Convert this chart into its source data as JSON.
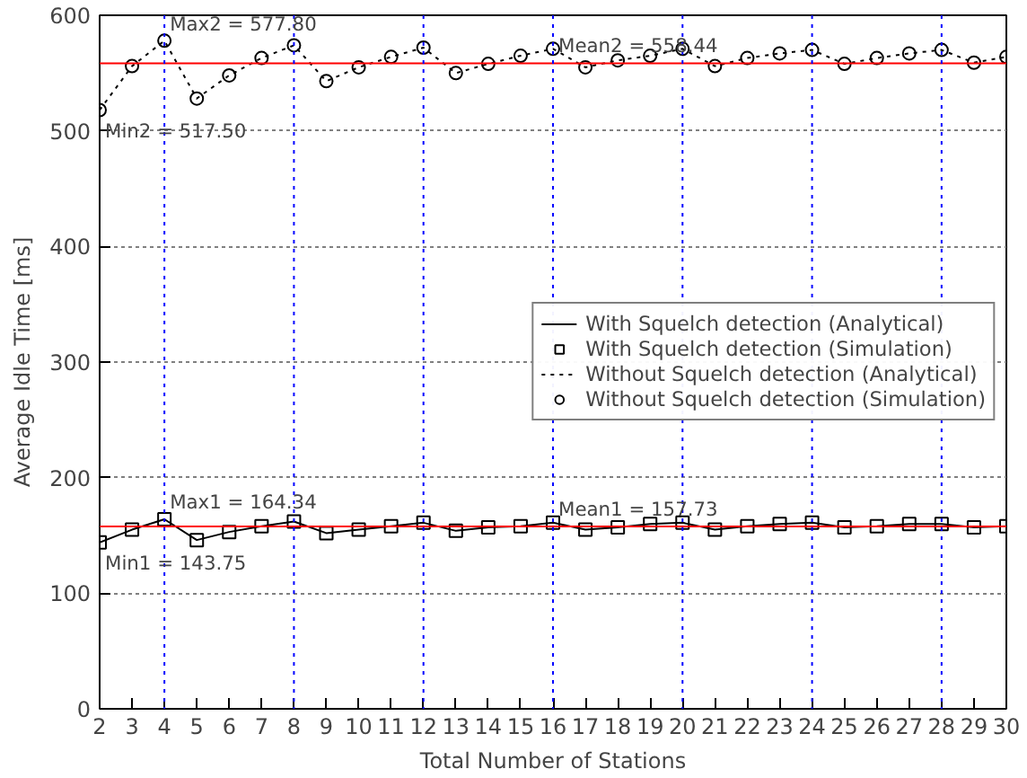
{
  "chart_data": {
    "type": "line",
    "xlabel": "Total Number of Stations",
    "ylabel": "Average Idle Time [ms]",
    "x": [
      2,
      3,
      4,
      5,
      6,
      7,
      8,
      9,
      10,
      11,
      12,
      13,
      14,
      15,
      16,
      17,
      18,
      19,
      20,
      21,
      22,
      23,
      24,
      25,
      26,
      27,
      28,
      29,
      30
    ],
    "xlim": [
      2,
      30
    ],
    "xticks": [
      2,
      3,
      4,
      5,
      6,
      7,
      8,
      9,
      10,
      11,
      12,
      13,
      14,
      15,
      16,
      17,
      18,
      19,
      20,
      21,
      22,
      23,
      24,
      25,
      26,
      27,
      28,
      29,
      30
    ],
    "ylim": [
      0,
      600
    ],
    "yticks": [
      0,
      100,
      200,
      300,
      400,
      500,
      600
    ],
    "grid": "y",
    "legend": "right",
    "series": [
      {
        "name": "With Squelch detection (Analytical)",
        "line_style": "solid",
        "marker": "none",
        "color": "#000000",
        "values": [
          144,
          155,
          164,
          146,
          153,
          158,
          162,
          152,
          155,
          158,
          161,
          154,
          157,
          158,
          161,
          155,
          157,
          160,
          161,
          155,
          158,
          160,
          161,
          157,
          158,
          160,
          160,
          157,
          158
        ]
      },
      {
        "name": "With Squelch detection (Simulation)",
        "type": "scatter",
        "marker": "square",
        "color": "#000000",
        "values": [
          144,
          155,
          164,
          146,
          153,
          158,
          162,
          152,
          155,
          158,
          161,
          154,
          157,
          158,
          161,
          155,
          157,
          160,
          161,
          155,
          158,
          160,
          161,
          157,
          158,
          160,
          160,
          157,
          158
        ]
      },
      {
        "name": "Without Squelch detection (Analytical)",
        "line_style": "dotted",
        "marker": "none",
        "color": "#000000",
        "values": [
          518,
          556,
          578,
          528,
          548,
          563,
          574,
          543,
          555,
          564,
          572,
          550,
          558,
          565,
          571,
          555,
          561,
          565,
          571,
          556,
          563,
          567,
          570,
          558,
          563,
          567,
          570,
          559,
          564
        ]
      },
      {
        "name": "Without Squelch detection (Simulation)",
        "type": "scatter",
        "marker": "circle",
        "color": "#000000",
        "values": [
          518,
          556,
          578,
          528,
          548,
          563,
          574,
          543,
          555,
          564,
          572,
          550,
          558,
          565,
          571,
          555,
          561,
          565,
          571,
          556,
          563,
          567,
          570,
          558,
          563,
          567,
          570,
          559,
          564
        ]
      }
    ],
    "ref_lines": [
      {
        "axis": "y",
        "value": 157.73,
        "color": "#ff0000",
        "line_style": "solid"
      },
      {
        "axis": "y",
        "value": 558.44,
        "color": "#ff0000",
        "line_style": "solid"
      },
      {
        "axis": "x",
        "value": 4,
        "color": "#0000ff",
        "line_style": "dotted"
      },
      {
        "axis": "x",
        "value": 8,
        "color": "#0000ff",
        "line_style": "dotted"
      },
      {
        "axis": "x",
        "value": 12,
        "color": "#0000ff",
        "line_style": "dotted"
      },
      {
        "axis": "x",
        "value": 16,
        "color": "#0000ff",
        "line_style": "dotted"
      },
      {
        "axis": "x",
        "value": 20,
        "color": "#0000ff",
        "line_style": "dotted"
      },
      {
        "axis": "x",
        "value": 24,
        "color": "#0000ff",
        "line_style": "dotted"
      },
      {
        "axis": "x",
        "value": 28,
        "color": "#0000ff",
        "line_style": "dotted"
      }
    ],
    "annotations": [
      {
        "text": "Max1 = 164.34",
        "x": 4,
        "y": 164.34
      },
      {
        "text": "Min1 = 143.75",
        "x": 2,
        "y": 143.75
      },
      {
        "text": "Mean1 = 157.73",
        "x": 16,
        "y": 157.73
      },
      {
        "text": "Max2 = 577.80",
        "x": 4,
        "y": 577.8
      },
      {
        "text": "Min2 = 517.50",
        "x": 2,
        "y": 517.5
      },
      {
        "text": "Mean2 = 558.44",
        "x": 16,
        "y": 558.44
      }
    ]
  }
}
